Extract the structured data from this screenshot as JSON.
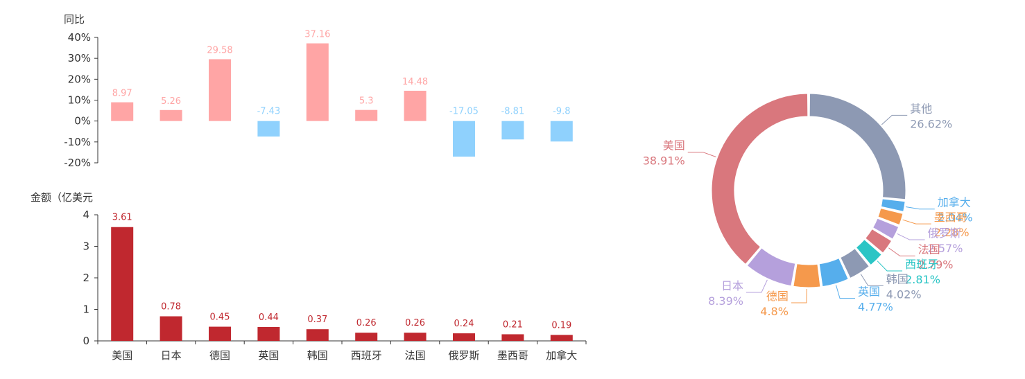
{
  "chart_data": [
    {
      "type": "bar",
      "ylabel": "同比",
      "ylim": [
        -20,
        40
      ],
      "yticks": [
        "40%",
        "30%",
        "20%",
        "10%",
        "0%",
        "-10%",
        "-20%"
      ],
      "categories": [
        "美国",
        "日本",
        "德国",
        "英国",
        "韩国",
        "西班牙",
        "法国",
        "俄罗斯",
        "墨西哥",
        "加拿大"
      ],
      "values": [
        8.97,
        5.26,
        29.58,
        -7.43,
        37.16,
        5.3,
        14.48,
        -17.05,
        -8.81,
        -9.8
      ],
      "value_labels": [
        "8.97",
        "5.26",
        "29.58",
        "-7.43",
        "37.16",
        "5.3",
        "14.48",
        "-17.05",
        "-8.81",
        "-9.8"
      ],
      "colors": {
        "positive": "#ffa5a5",
        "negative": "#8fd1fd"
      }
    },
    {
      "type": "bar",
      "ylabel": "金额（亿美元",
      "ylim": [
        0,
        4
      ],
      "yticks": [
        "4",
        "3",
        "2",
        "1",
        "0"
      ],
      "categories": [
        "美国",
        "日本",
        "德国",
        "英国",
        "韩国",
        "西班牙",
        "法国",
        "俄罗斯",
        "墨西哥",
        "加拿大"
      ],
      "values": [
        3.61,
        0.78,
        0.45,
        0.44,
        0.37,
        0.26,
        0.26,
        0.24,
        0.21,
        0.19
      ],
      "value_labels": [
        "3.61",
        "0.78",
        "0.45",
        "0.44",
        "0.37",
        "0.26",
        "0.26",
        "0.24",
        "0.21",
        "0.19"
      ],
      "colors": {
        "bar": "#c0282f"
      }
    },
    {
      "type": "pie",
      "donut": true,
      "slices": [
        {
          "name": "其他",
          "value": 26.62,
          "label": "26.62%",
          "color": "#8d99b3"
        },
        {
          "name": "加拿大",
          "value": 2.04,
          "label": "2.04%",
          "color": "#56aeec"
        },
        {
          "name": "墨西哥",
          "value": 2.28,
          "label": "2.28%",
          "color": "#f5994c"
        },
        {
          "name": "俄罗斯",
          "value": 2.57,
          "label": "2.57%",
          "color": "#b5a0dc"
        },
        {
          "name": "法国",
          "value": 2.79,
          "label": "2.79%",
          "color": "#d9777d"
        },
        {
          "name": "西班牙",
          "value": 2.81,
          "label": "2.81%",
          "color": "#2bc5c5"
        },
        {
          "name": "韩国",
          "value": 4.02,
          "label": "4.02%",
          "color": "#8d99b3"
        },
        {
          "name": "英国",
          "value": 4.77,
          "label": "4.77%",
          "color": "#56aeec"
        },
        {
          "name": "德国",
          "value": 4.8,
          "label": "4.8%",
          "color": "#f5994c"
        },
        {
          "name": "日本",
          "value": 8.39,
          "label": "8.39%",
          "color": "#b5a0dc"
        },
        {
          "name": "美国",
          "value": 38.91,
          "label": "38.91%",
          "color": "#d9777d"
        }
      ]
    }
  ]
}
